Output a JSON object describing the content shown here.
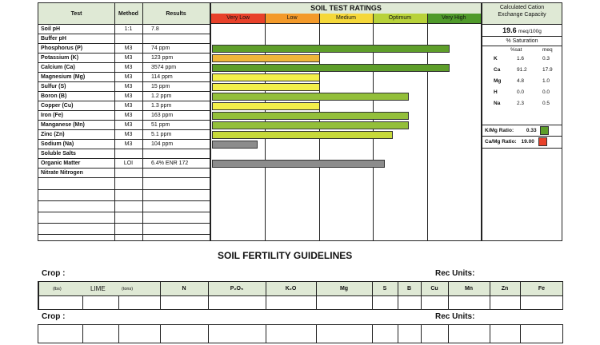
{
  "table": {
    "headers": {
      "test": "Test",
      "method": "Method",
      "results": "Results"
    },
    "rows": [
      {
        "test": "Soil pH",
        "method": "1:1",
        "result": "7.8",
        "rating": null,
        "color": null
      },
      {
        "test": "Buffer pH",
        "method": "",
        "result": "",
        "rating": null,
        "color": null
      },
      {
        "test": "Phosphorus (P)",
        "method": "M3",
        "result": "74 ppm",
        "rating": 0.88,
        "color": "#5e9e2a"
      },
      {
        "test": "Potassium (K)",
        "method": "M3",
        "result": "123 ppm",
        "rating": 0.4,
        "color": "#f0b63a"
      },
      {
        "test": "Calcium (Ca)",
        "method": "M3",
        "result": "3574 ppm",
        "rating": 0.88,
        "color": "#5e9e2a"
      },
      {
        "test": "Magnesium (Mg)",
        "method": "M3",
        "result": "114 ppm",
        "rating": 0.4,
        "color": "#f3ef4a"
      },
      {
        "test": "Sulfur (S)",
        "method": "M3",
        "result": "15 ppm",
        "rating": 0.4,
        "color": "#f3ef4a"
      },
      {
        "test": "Boron (B)",
        "method": "M3",
        "result": "1.2 ppm",
        "rating": 0.73,
        "color": "#93bf3a"
      },
      {
        "test": "Copper (Cu)",
        "method": "M3",
        "result": "1.3 ppm",
        "rating": 0.4,
        "color": "#f3ef4a"
      },
      {
        "test": "Iron (Fe)",
        "method": "M3",
        "result": "163 ppm",
        "rating": 0.73,
        "color": "#93bf3a"
      },
      {
        "test": "Manganese (Mn)",
        "method": "M3",
        "result": "51 ppm",
        "rating": 0.73,
        "color": "#93bf3a"
      },
      {
        "test": "Zinc (Zn)",
        "method": "M3",
        "result": "5.1 ppm",
        "rating": 0.67,
        "color": "#c7d93a"
      },
      {
        "test": "Sodium (Na)",
        "method": "M3",
        "result": "104 ppm",
        "rating": 0.17,
        "color": "#8c8c8c"
      },
      {
        "test": "Soluble Salts",
        "method": "",
        "result": "",
        "rating": null,
        "color": null
      },
      {
        "test": "Organic Matter",
        "method": "LOI",
        "result": "6.4%   ENR 172",
        "rating": 0.64,
        "color": "#8c8c8c"
      },
      {
        "test": "Nitrate Nitrogen",
        "method": "",
        "result": "",
        "rating": null,
        "color": null
      }
    ]
  },
  "ratings": {
    "title": "SOIL TEST RATINGS",
    "categories": [
      {
        "label": "Very Low",
        "color": "#e8412a"
      },
      {
        "label": "Low",
        "color": "#f39a2a"
      },
      {
        "label": "Medium",
        "color": "#f5d83a"
      },
      {
        "label": "Optimum",
        "color": "#b8d23a"
      },
      {
        "label": "Very High",
        "color": "#4f9a2a"
      }
    ]
  },
  "cec": {
    "title_line1": "Calculated Cation",
    "title_line2": "Exchange Capacity",
    "value": "19.6",
    "unit": "meq/100g",
    "saturation_label": "% Saturation",
    "col_sat": "%sat",
    "col_meq": "meq",
    "rows": [
      {
        "el": "K",
        "sat": "1.6",
        "meq": "0.3"
      },
      {
        "el": "Ca",
        "sat": "91.2",
        "meq": "17.9"
      },
      {
        "el": "Mg",
        "sat": "4.8",
        "meq": "1.0"
      },
      {
        "el": "H",
        "sat": "0.0",
        "meq": "0.0"
      },
      {
        "el": "Na",
        "sat": "2.3",
        "meq": "0.5"
      }
    ],
    "km_label": "K/Mg Ratio:",
    "km_value": "0.33",
    "km_color": "#5e9e2a",
    "cm_label": "Ca/Mg Ratio:",
    "cm_value": "19.00",
    "cm_color": "#e8412a"
  },
  "guidelines": {
    "title": "SOIL FERTILITY GUIDELINES",
    "crop1_label": "Crop :",
    "crop2_label": "Crop :",
    "rec_units1": "Rec Units:",
    "rec_units2": "Rec Units:",
    "lbs": "(lbs)",
    "lime": "LIME",
    "tons": "(tons)",
    "cols": [
      "N",
      "P₂O₅",
      "K₂O",
      "Mg",
      "S",
      "B",
      "Cu",
      "Mn",
      "Zn",
      "Fe"
    ]
  }
}
